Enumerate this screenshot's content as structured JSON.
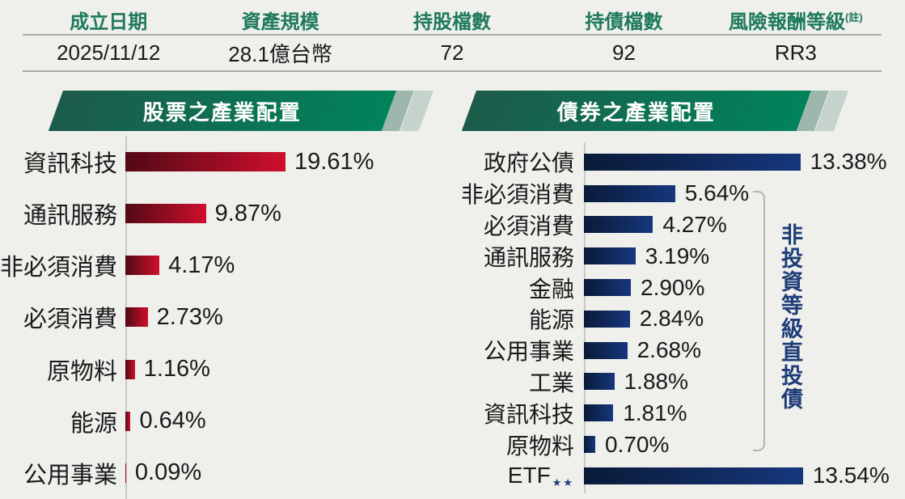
{
  "info_table": {
    "columns": [
      {
        "header": "成立日期",
        "value": "2025/11/12"
      },
      {
        "header": "資產規模",
        "value": "28.1億台幣"
      },
      {
        "header": "持股檔數",
        "value": "72"
      },
      {
        "header": "持債檔數",
        "value": "92"
      },
      {
        "header": "風險報酬等級",
        "header_note": "(註)",
        "value": "RR3"
      }
    ]
  },
  "chart_data": [
    {
      "type": "bar",
      "orientation": "horizontal",
      "title": "股票之產業配置",
      "categories": [
        "資訊科技",
        "通訊服務",
        "非必須消費",
        "必須消費",
        "原物料",
        "能源",
        "公用事業"
      ],
      "values": [
        19.61,
        9.87,
        4.17,
        2.73,
        1.16,
        0.64,
        0.09
      ],
      "value_labels": [
        "19.61%",
        "9.87%",
        "4.17%",
        "2.73%",
        "1.16%",
        "0.64%",
        "0.09%"
      ],
      "xlim": [
        0,
        20
      ],
      "grid": false,
      "legend": false,
      "bar_gradient": [
        "#520A14",
        "#CE0E2D"
      ]
    },
    {
      "type": "bar",
      "orientation": "horizontal",
      "title": "債券之產業配置",
      "categories": [
        "政府公債",
        "非必須消費",
        "必須消費",
        "通訊服務",
        "金融",
        "能源",
        "公用事業",
        "工業",
        "資訊科技",
        "原物料",
        "ETF"
      ],
      "suffixes": {
        "10": "★★"
      },
      "values": [
        13.38,
        5.64,
        4.27,
        3.19,
        2.9,
        2.84,
        2.68,
        1.88,
        1.81,
        0.7,
        13.54
      ],
      "value_labels": [
        "13.38%",
        "5.64%",
        "4.27%",
        "3.19%",
        "2.90%",
        "2.84%",
        "2.68%",
        "1.88%",
        "1.81%",
        "0.70%",
        "13.54%"
      ],
      "xlim": [
        0,
        14
      ],
      "grid": false,
      "legend": false,
      "bar_gradient": [
        "#0A1A38",
        "#16377D"
      ],
      "annotation": {
        "text": "非投資等級直投債",
        "applies_to": [
          "非必須消費",
          "必須消費",
          "通訊服務",
          "金融",
          "能源",
          "公用事業",
          "工業",
          "資訊科技",
          "原物料"
        ]
      }
    }
  ],
  "colors": {
    "background": "#EFEFEC",
    "table_header_green": "#1E7A5B",
    "divider_gray": "#A8A8A8",
    "banner_gradient_start": "#1D5B4A",
    "banner_gradient_end": "#00835A",
    "banner_stripe_1": "#9DB7AC",
    "banner_stripe_2": "#C6D3CC",
    "stock_bar_dark": "#520A14",
    "stock_bar_red": "#CE0E2D",
    "bond_bar_dark": "#0A1A38",
    "bond_bar_navy": "#16377D",
    "annotation_navy": "#1E3C78",
    "bracket_gray": "#B3B3B3"
  }
}
